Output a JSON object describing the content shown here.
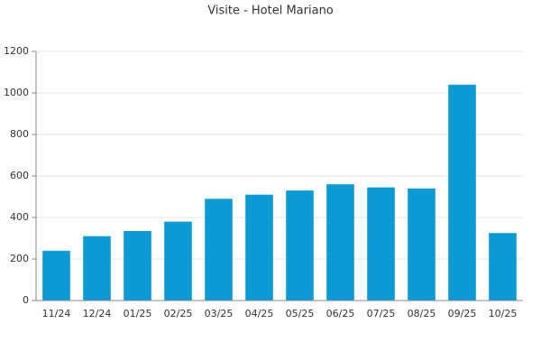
{
  "chart_data": {
    "type": "bar",
    "title": "Visite - Hotel Mariano",
    "categories": [
      "11/24",
      "12/24",
      "01/25",
      "02/25",
      "03/25",
      "04/25",
      "05/25",
      "06/25",
      "07/25",
      "08/25",
      "09/25",
      "10/25"
    ],
    "values": [
      240,
      310,
      335,
      380,
      490,
      510,
      530,
      560,
      545,
      540,
      1040,
      325
    ],
    "color": "#0a9bd6",
    "ylim": [
      0,
      1200
    ],
    "yticks": [
      0,
      200,
      400,
      600,
      800,
      1000,
      1200
    ],
    "grid": true
  }
}
